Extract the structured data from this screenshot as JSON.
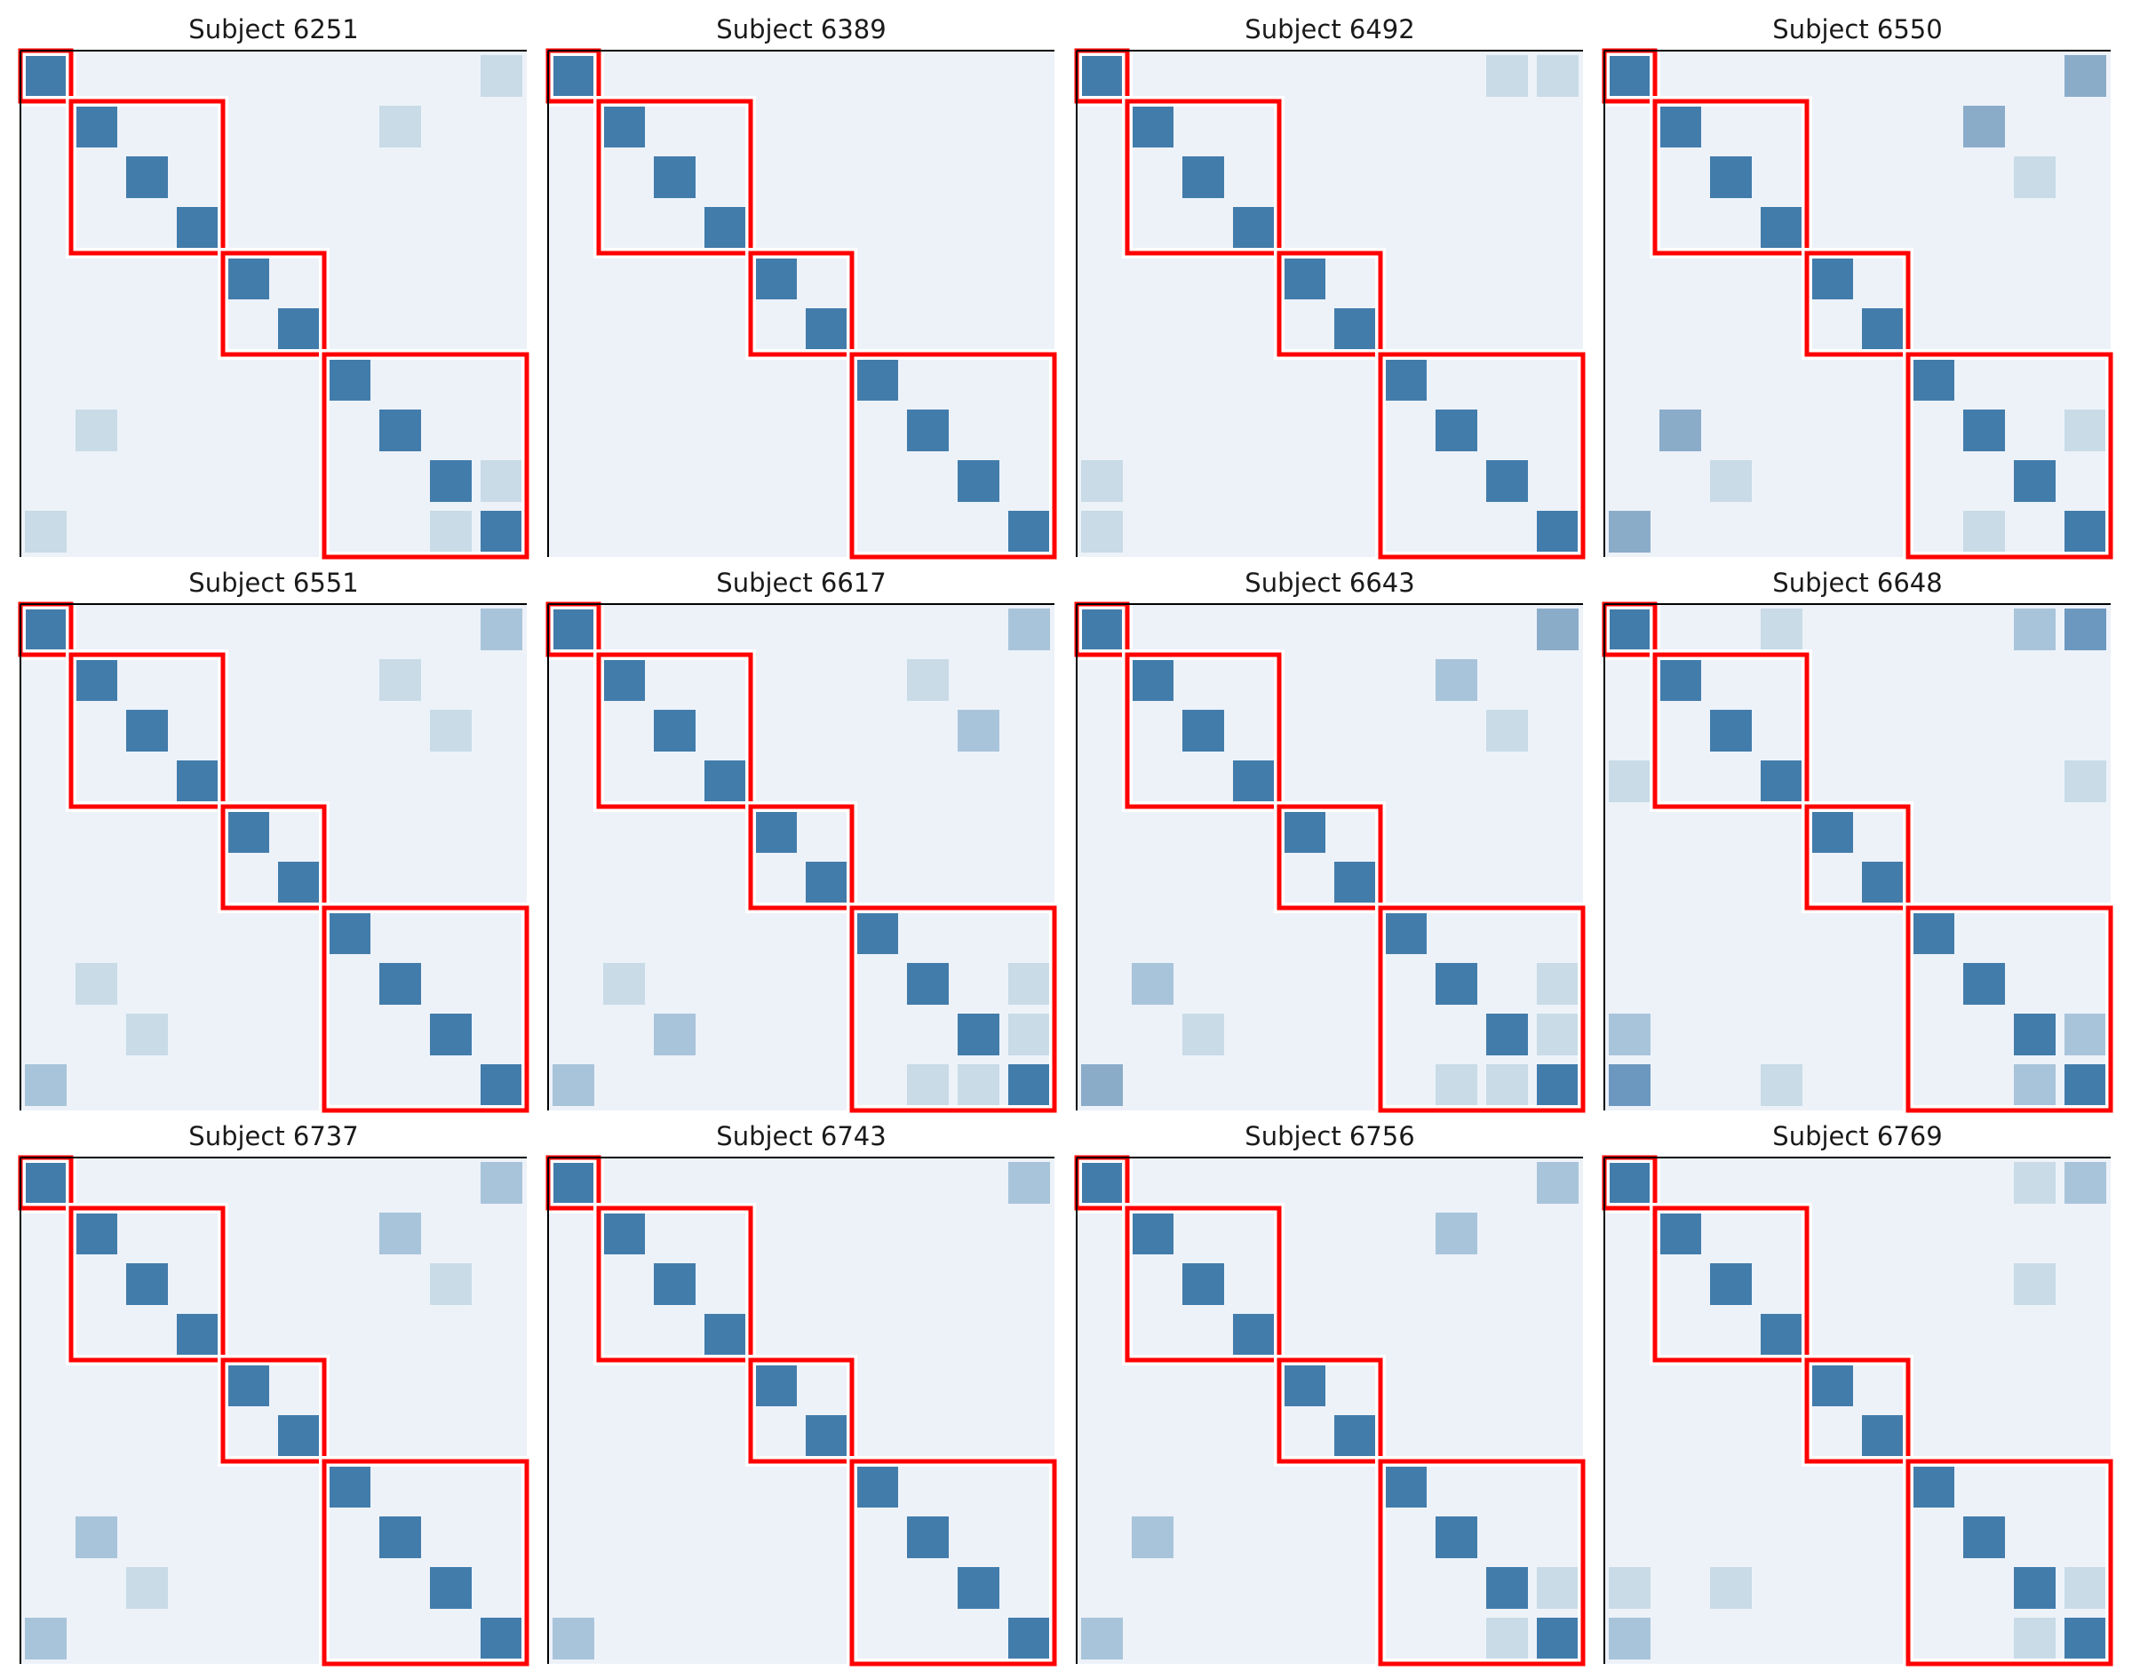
{
  "chart_data": {
    "type": "heatmap",
    "layout": {
      "rows": 3,
      "cols": 4
    },
    "matrix_size": 10,
    "cluster_blocks": [
      [
        0,
        0
      ],
      [
        1,
        3
      ],
      [
        4,
        5
      ],
      [
        6,
        9
      ]
    ],
    "colors": {
      "background": "#edf2f9",
      "diagonal": "#427cab",
      "weak": "#c8dbe7",
      "medium": "#a8c4da",
      "strong": "#8aacc9",
      "very_strong": "#6c98c0",
      "cluster_box": "#ff0000",
      "axes": "#000000"
    },
    "panels": [
      {
        "title": "Subject 6251",
        "off_diagonal": [
          [
            0,
            9,
            "weak"
          ],
          [
            1,
            7,
            "weak"
          ],
          [
            7,
            1,
            "weak"
          ],
          [
            8,
            9,
            "weak"
          ],
          [
            9,
            8,
            "weak"
          ],
          [
            9,
            0,
            "weak"
          ]
        ]
      },
      {
        "title": "Subject 6389",
        "off_diagonal": []
      },
      {
        "title": "Subject 6492",
        "off_diagonal": [
          [
            0,
            8,
            "weak"
          ],
          [
            0,
            9,
            "weak"
          ],
          [
            8,
            0,
            "weak"
          ],
          [
            9,
            0,
            "weak"
          ]
        ]
      },
      {
        "title": "Subject 6550",
        "off_diagonal": [
          [
            0,
            9,
            "strong"
          ],
          [
            1,
            7,
            "strong"
          ],
          [
            2,
            8,
            "weak"
          ],
          [
            7,
            1,
            "strong"
          ],
          [
            7,
            9,
            "weak"
          ],
          [
            8,
            2,
            "weak"
          ],
          [
            9,
            7,
            "weak"
          ],
          [
            9,
            0,
            "strong"
          ]
        ]
      },
      {
        "title": "Subject 6551",
        "off_diagonal": [
          [
            0,
            9,
            "medium"
          ],
          [
            1,
            7,
            "weak"
          ],
          [
            2,
            8,
            "weak"
          ],
          [
            7,
            1,
            "weak"
          ],
          [
            8,
            2,
            "weak"
          ],
          [
            9,
            0,
            "medium"
          ]
        ]
      },
      {
        "title": "Subject 6617",
        "off_diagonal": [
          [
            0,
            9,
            "medium"
          ],
          [
            1,
            7,
            "weak"
          ],
          [
            2,
            8,
            "medium"
          ],
          [
            7,
            1,
            "weak"
          ],
          [
            7,
            9,
            "weak"
          ],
          [
            8,
            2,
            "medium"
          ],
          [
            8,
            9,
            "weak"
          ],
          [
            9,
            0,
            "medium"
          ],
          [
            9,
            7,
            "weak"
          ],
          [
            9,
            8,
            "weak"
          ]
        ]
      },
      {
        "title": "Subject 6643",
        "off_diagonal": [
          [
            0,
            9,
            "strong"
          ],
          [
            1,
            7,
            "medium"
          ],
          [
            2,
            8,
            "weak"
          ],
          [
            7,
            1,
            "medium"
          ],
          [
            7,
            9,
            "weak"
          ],
          [
            8,
            2,
            "weak"
          ],
          [
            8,
            9,
            "weak"
          ],
          [
            9,
            0,
            "strong"
          ],
          [
            9,
            7,
            "weak"
          ],
          [
            9,
            8,
            "weak"
          ]
        ]
      },
      {
        "title": "Subject 6648",
        "off_diagonal": [
          [
            0,
            3,
            "weak"
          ],
          [
            0,
            8,
            "medium"
          ],
          [
            0,
            9,
            "very_strong"
          ],
          [
            3,
            0,
            "weak"
          ],
          [
            3,
            9,
            "weak"
          ],
          [
            8,
            0,
            "medium"
          ],
          [
            8,
            9,
            "medium"
          ],
          [
            9,
            0,
            "very_strong"
          ],
          [
            9,
            3,
            "weak"
          ],
          [
            9,
            8,
            "medium"
          ]
        ]
      },
      {
        "title": "Subject 6737",
        "off_diagonal": [
          [
            0,
            9,
            "medium"
          ],
          [
            1,
            7,
            "medium"
          ],
          [
            2,
            8,
            "weak"
          ],
          [
            7,
            1,
            "medium"
          ],
          [
            8,
            2,
            "weak"
          ],
          [
            9,
            0,
            "medium"
          ]
        ]
      },
      {
        "title": "Subject 6743",
        "off_diagonal": [
          [
            0,
            9,
            "medium"
          ],
          [
            9,
            0,
            "medium"
          ]
        ]
      },
      {
        "title": "Subject 6756",
        "off_diagonal": [
          [
            0,
            9,
            "medium"
          ],
          [
            1,
            7,
            "medium"
          ],
          [
            7,
            1,
            "medium"
          ],
          [
            8,
            9,
            "weak"
          ],
          [
            9,
            8,
            "weak"
          ],
          [
            9,
            0,
            "medium"
          ]
        ]
      },
      {
        "title": "Subject 6769",
        "off_diagonal": [
          [
            0,
            8,
            "weak"
          ],
          [
            0,
            9,
            "medium"
          ],
          [
            2,
            8,
            "weak"
          ],
          [
            8,
            0,
            "weak"
          ],
          [
            8,
            2,
            "weak"
          ],
          [
            8,
            9,
            "weak"
          ],
          [
            9,
            8,
            "weak"
          ],
          [
            9,
            0,
            "medium"
          ]
        ]
      }
    ]
  }
}
